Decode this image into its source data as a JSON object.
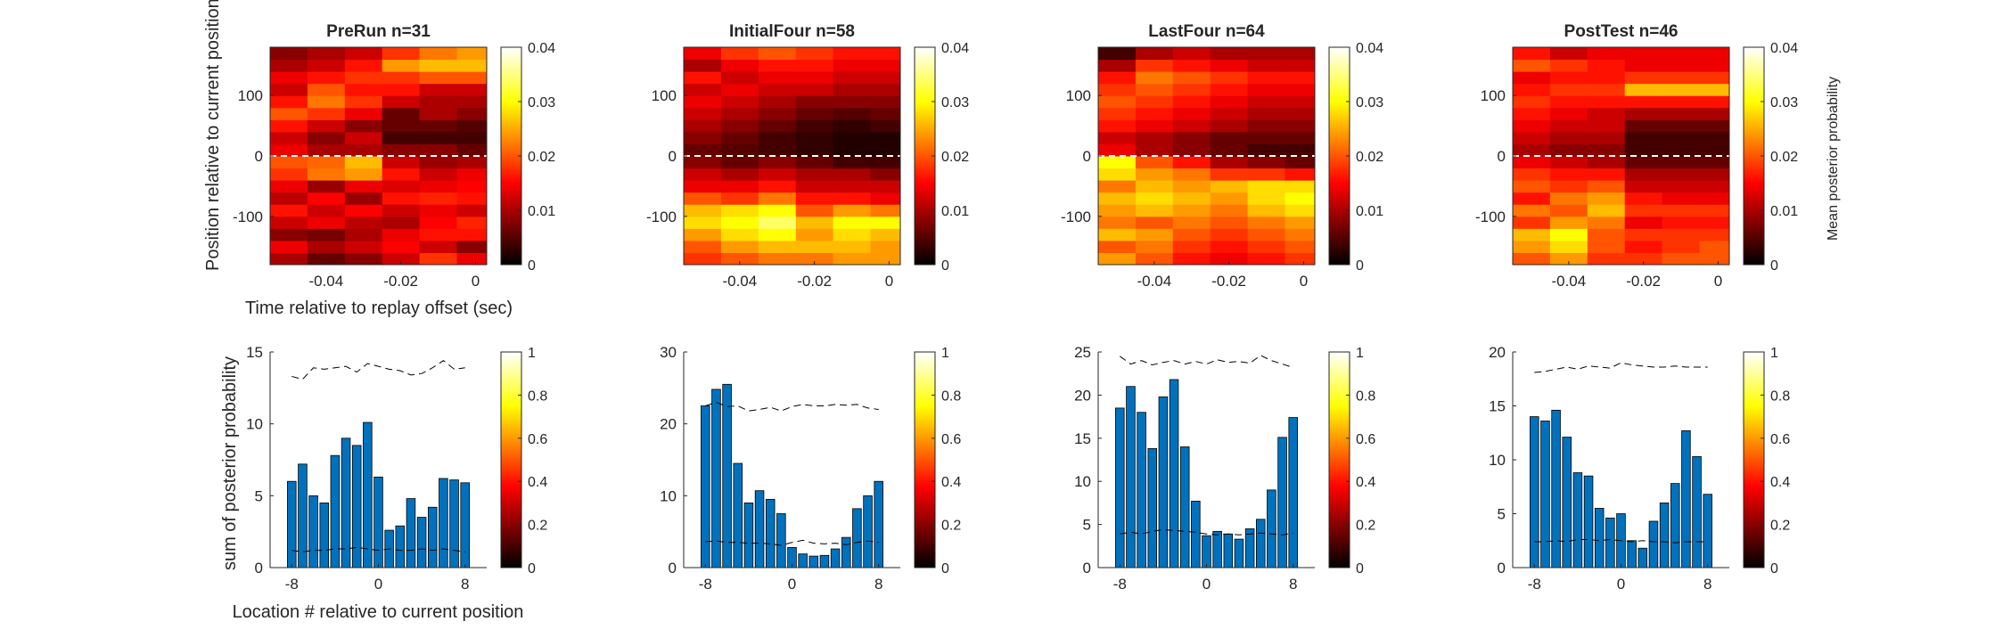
{
  "figure": {
    "heatmap_ylabel": "Position relative to current position (deg)",
    "heatmap_xlabel": "Time relative to replay offset (sec)",
    "bar_ylabel": "sum of posterior probability",
    "bar_xlabel": "Location # relative to current position",
    "heatmap_colorbar_label": "Mean posterior probability"
  },
  "chart_data": [
    {
      "type": "heatmap",
      "title": "PreRun n=31",
      "xlim": [
        -0.055,
        0.003
      ],
      "ylim": [
        -180,
        180
      ],
      "xticks": [
        -0.04,
        -0.02,
        0
      ],
      "xticklabels": [
        "-0.04",
        "-0.02",
        "0"
      ],
      "yticks": [
        -100,
        0,
        100
      ],
      "yticklabels": [
        "-100",
        "0",
        "100"
      ],
      "time_bins": [
        -0.05,
        -0.04,
        -0.03,
        -0.02,
        -0.01,
        0
      ],
      "position_bins": [
        -170,
        -150,
        -130,
        -110,
        -90,
        -70,
        -50,
        -30,
        -10,
        10,
        30,
        50,
        70,
        90,
        110,
        130,
        150,
        170
      ],
      "values": [
        [
          0.01,
          0.006,
          0.008,
          0.012,
          0.018,
          0.014
        ],
        [
          0.014,
          0.01,
          0.012,
          0.015,
          0.012,
          0.008
        ],
        [
          0.008,
          0.007,
          0.01,
          0.014,
          0.016,
          0.016
        ],
        [
          0.012,
          0.014,
          0.011,
          0.01,
          0.015,
          0.017
        ],
        [
          0.016,
          0.012,
          0.015,
          0.012,
          0.014,
          0.012
        ],
        [
          0.011,
          0.015,
          0.009,
          0.016,
          0.017,
          0.016
        ],
        [
          0.014,
          0.009,
          0.014,
          0.013,
          0.014,
          0.015
        ],
        [
          0.018,
          0.022,
          0.024,
          0.016,
          0.012,
          0.014
        ],
        [
          0.02,
          0.021,
          0.026,
          0.012,
          0.009,
          0.01
        ],
        [
          0.014,
          0.01,
          0.01,
          0.008,
          0.008,
          0.006
        ],
        [
          0.012,
          0.008,
          0.012,
          0.004,
          0.004,
          0.004
        ],
        [
          0.016,
          0.012,
          0.008,
          0.006,
          0.006,
          0.005
        ],
        [
          0.02,
          0.018,
          0.014,
          0.006,
          0.01,
          0.008
        ],
        [
          0.016,
          0.022,
          0.018,
          0.012,
          0.01,
          0.01
        ],
        [
          0.012,
          0.02,
          0.016,
          0.016,
          0.012,
          0.012
        ],
        [
          0.014,
          0.016,
          0.018,
          0.018,
          0.02,
          0.02
        ],
        [
          0.01,
          0.012,
          0.016,
          0.024,
          0.026,
          0.026
        ],
        [
          0.008,
          0.01,
          0.012,
          0.018,
          0.022,
          0.024
        ]
      ],
      "colorbar": {
        "range": [
          0,
          0.04
        ],
        "ticks": [
          "0",
          "0.01",
          "0.02",
          "0.03",
          "0.04"
        ]
      }
    },
    {
      "type": "heatmap",
      "title": "InitialFour n=58",
      "xlim": [
        -0.055,
        0.003
      ],
      "ylim": [
        -180,
        180
      ],
      "xticks": [
        -0.04,
        -0.02,
        0
      ],
      "xticklabels": [
        "-0.04",
        "-0.02",
        "0"
      ],
      "yticks": [
        -100,
        0,
        100
      ],
      "yticklabels": [
        "-100",
        "0",
        "100"
      ],
      "time_bins": [
        -0.05,
        -0.04,
        -0.03,
        -0.02,
        -0.01,
        0
      ],
      "position_bins": [
        -170,
        -150,
        -130,
        -110,
        -90,
        -70,
        -50,
        -30,
        -10,
        10,
        30,
        50,
        70,
        90,
        110,
        130,
        150,
        170
      ],
      "values": [
        [
          0.018,
          0.02,
          0.022,
          0.022,
          0.024,
          0.024
        ],
        [
          0.02,
          0.024,
          0.026,
          0.026,
          0.026,
          0.024
        ],
        [
          0.024,
          0.028,
          0.03,
          0.024,
          0.028,
          0.026
        ],
        [
          0.028,
          0.03,
          0.034,
          0.026,
          0.03,
          0.03
        ],
        [
          0.026,
          0.028,
          0.03,
          0.02,
          0.024,
          0.022
        ],
        [
          0.02,
          0.018,
          0.022,
          0.016,
          0.016,
          0.014
        ],
        [
          0.014,
          0.014,
          0.016,
          0.012,
          0.012,
          0.012
        ],
        [
          0.012,
          0.01,
          0.012,
          0.01,
          0.01,
          0.008
        ],
        [
          0.008,
          0.006,
          0.008,
          0.006,
          0.004,
          0.004
        ],
        [
          0.006,
          0.005,
          0.004,
          0.003,
          0.002,
          0.002
        ],
        [
          0.008,
          0.006,
          0.004,
          0.003,
          0.002,
          0.002
        ],
        [
          0.01,
          0.008,
          0.006,
          0.004,
          0.003,
          0.004
        ],
        [
          0.012,
          0.01,
          0.008,
          0.006,
          0.005,
          0.006
        ],
        [
          0.014,
          0.012,
          0.01,
          0.008,
          0.008,
          0.008
        ],
        [
          0.012,
          0.014,
          0.012,
          0.012,
          0.01,
          0.01
        ],
        [
          0.016,
          0.012,
          0.014,
          0.014,
          0.012,
          0.012
        ],
        [
          0.01,
          0.014,
          0.016,
          0.016,
          0.014,
          0.014
        ],
        [
          0.014,
          0.018,
          0.02,
          0.018,
          0.016,
          0.016
        ]
      ],
      "colorbar": {
        "range": [
          0,
          0.04
        ],
        "ticks": [
          "0",
          "0.01",
          "0.02",
          "0.03",
          "0.04"
        ]
      }
    },
    {
      "type": "heatmap",
      "title": "LastFour n=64",
      "xlim": [
        -0.055,
        0.003
      ],
      "ylim": [
        -180,
        180
      ],
      "xticks": [
        -0.04,
        -0.02,
        0
      ],
      "xticklabels": [
        "-0.04",
        "-0.02",
        "0"
      ],
      "yticks": [
        -100,
        0,
        100
      ],
      "yticklabels": [
        "-100",
        "0",
        "100"
      ],
      "time_bins": [
        -0.05,
        -0.04,
        -0.03,
        -0.02,
        -0.01,
        0
      ],
      "position_bins": [
        -170,
        -150,
        -130,
        -110,
        -90,
        -70,
        -50,
        -30,
        -10,
        10,
        30,
        50,
        70,
        90,
        110,
        130,
        150,
        170
      ],
      "values": [
        [
          0.024,
          0.02,
          0.016,
          0.014,
          0.016,
          0.018
        ],
        [
          0.02,
          0.022,
          0.018,
          0.016,
          0.018,
          0.02
        ],
        [
          0.026,
          0.024,
          0.02,
          0.018,
          0.02,
          0.022
        ],
        [
          0.022,
          0.02,
          0.022,
          0.02,
          0.022,
          0.024
        ],
        [
          0.024,
          0.026,
          0.024,
          0.022,
          0.026,
          0.028
        ],
        [
          0.026,
          0.028,
          0.026,
          0.024,
          0.028,
          0.03
        ],
        [
          0.022,
          0.026,
          0.024,
          0.026,
          0.028,
          0.028
        ],
        [
          0.028,
          0.024,
          0.022,
          0.018,
          0.018,
          0.016
        ],
        [
          0.03,
          0.02,
          0.016,
          0.01,
          0.008,
          0.006
        ],
        [
          0.014,
          0.01,
          0.008,
          0.006,
          0.004,
          0.004
        ],
        [
          0.012,
          0.01,
          0.008,
          0.006,
          0.006,
          0.006
        ],
        [
          0.016,
          0.014,
          0.012,
          0.01,
          0.008,
          0.008
        ],
        [
          0.018,
          0.016,
          0.014,
          0.012,
          0.01,
          0.01
        ],
        [
          0.02,
          0.018,
          0.016,
          0.014,
          0.012,
          0.012
        ],
        [
          0.018,
          0.02,
          0.018,
          0.016,
          0.014,
          0.014
        ],
        [
          0.016,
          0.022,
          0.02,
          0.018,
          0.016,
          0.016
        ],
        [
          0.01,
          0.018,
          0.016,
          0.014,
          0.012,
          0.012
        ],
        [
          0.004,
          0.01,
          0.012,
          0.01,
          0.01,
          0.01
        ]
      ],
      "colorbar": {
        "range": [
          0,
          0.04
        ],
        "ticks": [
          "0",
          "0.01",
          "0.02",
          "0.03",
          "0.04"
        ]
      }
    },
    {
      "type": "heatmap",
      "title": "PostTest n=46",
      "xlim": [
        -0.055,
        0.003
      ],
      "ylim": [
        -180,
        180
      ],
      "xticks": [
        -0.04,
        -0.02,
        0
      ],
      "xticklabels": [
        "-0.04",
        "-0.02",
        "0"
      ],
      "yticks": [
        -100,
        0,
        100
      ],
      "yticklabels": [
        "-100",
        "0",
        "100"
      ],
      "time_bins": [
        -0.05,
        -0.04,
        -0.03,
        -0.02,
        -0.01,
        0
      ],
      "position_bins": [
        -170,
        -150,
        -130,
        -110,
        -90,
        -70,
        -50,
        -30,
        -10,
        10,
        30,
        50,
        70,
        90,
        110,
        130,
        150,
        170
      ],
      "values": [
        [
          0.02,
          0.024,
          0.018,
          0.018,
          0.02,
          0.02
        ],
        [
          0.024,
          0.028,
          0.02,
          0.016,
          0.018,
          0.02
        ],
        [
          0.026,
          0.03,
          0.02,
          0.018,
          0.018,
          0.018
        ],
        [
          0.018,
          0.024,
          0.022,
          0.014,
          0.016,
          0.016
        ],
        [
          0.022,
          0.02,
          0.026,
          0.018,
          0.018,
          0.018
        ],
        [
          0.016,
          0.022,
          0.024,
          0.016,
          0.014,
          0.014
        ],
        [
          0.02,
          0.018,
          0.02,
          0.012,
          0.012,
          0.012
        ],
        [
          0.018,
          0.016,
          0.016,
          0.01,
          0.01,
          0.01
        ],
        [
          0.014,
          0.012,
          0.01,
          0.006,
          0.006,
          0.006
        ],
        [
          0.01,
          0.008,
          0.008,
          0.004,
          0.004,
          0.004
        ],
        [
          0.012,
          0.01,
          0.01,
          0.004,
          0.004,
          0.004
        ],
        [
          0.014,
          0.012,
          0.012,
          0.006,
          0.006,
          0.006
        ],
        [
          0.016,
          0.014,
          0.012,
          0.01,
          0.01,
          0.01
        ],
        [
          0.018,
          0.016,
          0.016,
          0.016,
          0.016,
          0.016
        ],
        [
          0.016,
          0.018,
          0.018,
          0.026,
          0.026,
          0.026
        ],
        [
          0.014,
          0.016,
          0.016,
          0.018,
          0.018,
          0.018
        ],
        [
          0.02,
          0.018,
          0.016,
          0.014,
          0.014,
          0.014
        ],
        [
          0.016,
          0.012,
          0.014,
          0.014,
          0.014,
          0.014
        ]
      ],
      "colorbar": {
        "range": [
          0,
          0.04
        ],
        "ticks": [
          "0",
          "0.01",
          "0.02",
          "0.03",
          "0.04"
        ]
      }
    },
    {
      "type": "bar",
      "x": [
        -8,
        -7,
        -6,
        -5,
        -4,
        -3,
        -2,
        -1,
        0,
        1,
        2,
        3,
        4,
        5,
        6,
        7,
        8
      ],
      "values": [
        6.0,
        7.2,
        5.0,
        4.5,
        7.8,
        9.0,
        8.5,
        10.1,
        6.3,
        2.6,
        2.9,
        4.8,
        3.5,
        4.2,
        6.2,
        6.1,
        5.9
      ],
      "upper_line": [
        13.3,
        13.1,
        13.9,
        13.8,
        13.9,
        14.0,
        13.6,
        14.2,
        14.0,
        13.8,
        13.7,
        13.4,
        13.5,
        13.9,
        14.4,
        13.8,
        13.9
      ],
      "lower_line": [
        1.2,
        1.1,
        1.2,
        1.2,
        1.3,
        1.3,
        1.4,
        1.3,
        1.2,
        1.3,
        1.2,
        1.2,
        1.3,
        1.2,
        1.3,
        1.2,
        1.1
      ],
      "xlim": [
        -10,
        10
      ],
      "ylim": [
        0,
        15
      ],
      "xticks": [
        "-8",
        "0",
        "8"
      ],
      "yticks": [
        "0",
        "5",
        "10",
        "15"
      ],
      "colorbar": {
        "range": [
          0,
          1
        ],
        "ticks": [
          "0",
          "0.2",
          "0.4",
          "0.6",
          "0.8",
          "1"
        ]
      }
    },
    {
      "type": "bar",
      "x": [
        -8,
        -7,
        -6,
        -5,
        -4,
        -3,
        -2,
        -1,
        0,
        1,
        2,
        3,
        4,
        5,
        6,
        7,
        8
      ],
      "values": [
        22.5,
        24.8,
        25.5,
        14.5,
        9.0,
        10.7,
        9.5,
        7.5,
        2.8,
        1.9,
        1.6,
        1.7,
        2.6,
        4.2,
        8.2,
        10.0,
        12.0
      ],
      "upper_line": [
        22.5,
        23.0,
        22.4,
        22.5,
        21.8,
        22.0,
        22.3,
        21.8,
        22.4,
        22.7,
        22.5,
        22.5,
        22.7,
        22.6,
        22.7,
        22.2,
        22.0
      ],
      "lower_line": [
        3.6,
        3.7,
        3.5,
        3.5,
        3.4,
        3.4,
        3.3,
        3.1,
        3.5,
        3.8,
        3.4,
        3.3,
        3.4,
        3.2,
        3.5,
        3.7,
        3.5
      ],
      "xlim": [
        -10,
        10
      ],
      "ylim": [
        0,
        30
      ],
      "xticks": [
        "-8",
        "0",
        "8"
      ],
      "yticks": [
        "0",
        "10",
        "20",
        "30"
      ],
      "colorbar": {
        "range": [
          0,
          1
        ],
        "ticks": [
          "0",
          "0.2",
          "0.4",
          "0.6",
          "0.8",
          "1"
        ]
      }
    },
    {
      "type": "bar",
      "x": [
        -8,
        -7,
        -6,
        -5,
        -4,
        -3,
        -2,
        -1,
        0,
        1,
        2,
        3,
        4,
        5,
        6,
        7,
        8
      ],
      "values": [
        18.5,
        21.0,
        18.0,
        13.8,
        19.8,
        21.8,
        14.0,
        7.7,
        3.7,
        4.2,
        3.9,
        3.3,
        4.5,
        5.6,
        9.0,
        15.1,
        17.4
      ],
      "upper_line": [
        24.5,
        23.6,
        24.0,
        23.5,
        23.8,
        24.0,
        23.6,
        23.9,
        23.6,
        24.1,
        23.8,
        23.9,
        23.7,
        24.6,
        24.0,
        23.6,
        23.2
      ],
      "lower_line": [
        3.9,
        4.1,
        3.9,
        4.2,
        4.4,
        4.3,
        4.2,
        4.1,
        3.9,
        3.8,
        3.9,
        3.8,
        3.9,
        4.0,
        3.9,
        3.8,
        4.0
      ],
      "xlim": [
        -10,
        10
      ],
      "ylim": [
        0,
        25
      ],
      "xticks": [
        "-8",
        "0",
        "8"
      ],
      "yticks": [
        "0",
        "5",
        "10",
        "15",
        "20",
        "25"
      ],
      "colorbar": {
        "range": [
          0,
          1
        ],
        "ticks": [
          "0",
          "0.2",
          "0.4",
          "0.6",
          "0.8",
          "1"
        ]
      }
    },
    {
      "type": "bar",
      "x": [
        -8,
        -7,
        -6,
        -5,
        -4,
        -3,
        -2,
        -1,
        0,
        1,
        2,
        3,
        4,
        5,
        6,
        7,
        8
      ],
      "values": [
        14.0,
        13.6,
        14.6,
        12.1,
        8.8,
        8.5,
        5.5,
        4.6,
        5.0,
        2.5,
        1.8,
        4.3,
        6.0,
        7.8,
        12.7,
        10.3,
        6.8
      ],
      "upper_line": [
        18.1,
        18.2,
        18.4,
        18.6,
        18.4,
        18.7,
        18.6,
        18.5,
        19.0,
        18.8,
        18.7,
        18.6,
        18.6,
        18.7,
        18.6,
        18.6,
        18.6
      ],
      "lower_line": [
        2.4,
        2.4,
        2.5,
        2.4,
        2.6,
        2.6,
        2.5,
        2.6,
        2.5,
        2.4,
        2.5,
        2.4,
        2.4,
        2.3,
        2.4,
        2.4,
        2.4
      ],
      "xlim": [
        -10,
        10
      ],
      "ylim": [
        0,
        20
      ],
      "xticks": [
        "-8",
        "0",
        "8"
      ],
      "yticks": [
        "0",
        "5",
        "10",
        "15",
        "20"
      ],
      "colorbar": {
        "range": [
          0,
          1
        ],
        "ticks": [
          "0",
          "0.2",
          "0.4",
          "0.6",
          "0.8",
          "1"
        ]
      }
    }
  ]
}
